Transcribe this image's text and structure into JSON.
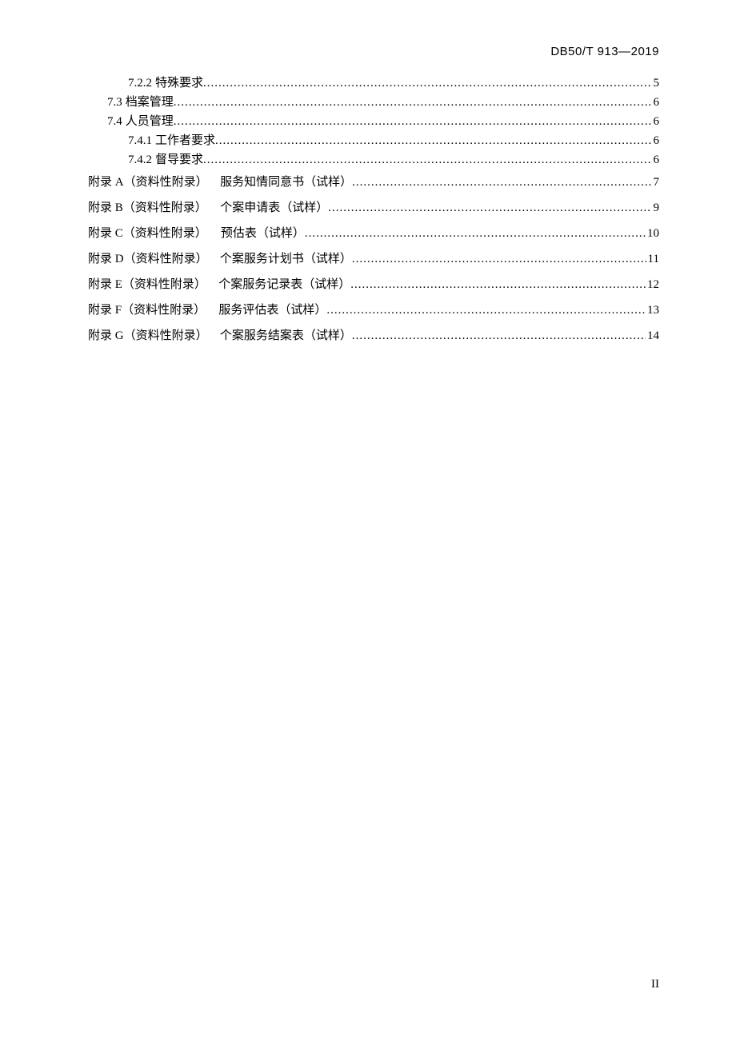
{
  "doc_code": "DB50/T 913—2019",
  "page_label": "II",
  "toc": [
    {
      "kind": "section",
      "level": 0,
      "num": "7.2.2",
      "title": "特殊要求",
      "page": "5",
      "lh": "small"
    },
    {
      "kind": "section",
      "level": 1,
      "num": "7.3",
      "title": "档案管理",
      "page": "6",
      "lh": "small"
    },
    {
      "kind": "section",
      "level": 1,
      "num": "7.4",
      "title": "人员管理",
      "page": "6",
      "lh": "small"
    },
    {
      "kind": "section",
      "level": 0,
      "num": "7.4.1",
      "title": "工作者要求",
      "page": "6",
      "lh": "small"
    },
    {
      "kind": "section",
      "level": 0,
      "num": "7.4.2",
      "title": "督导要求",
      "page": "6",
      "lh": "small"
    },
    {
      "kind": "appendix",
      "level": 2,
      "label": "附录 A（资料性附录）",
      "title": "服务知情同意书（试样）",
      "page": "7",
      "lh": "large"
    },
    {
      "kind": "appendix",
      "level": 2,
      "label": "附录 B（资料性附录）",
      "title": "个案申请表（试样）",
      "page": "9",
      "lh": "large"
    },
    {
      "kind": "appendix",
      "level": 2,
      "label": "附录 C（资料性附录）",
      "title": "预估表（试样）",
      "page": "10",
      "lh": "large"
    },
    {
      "kind": "appendix",
      "level": 2,
      "label": "附录 D（资料性附录）",
      "title": "个案服务计划书（试样）",
      "page": "11",
      "lh": "large"
    },
    {
      "kind": "appendix",
      "level": 2,
      "label": "附录 E（资料性附录）",
      "title": "个案服务记录表（试样）",
      "page": "12",
      "lh": "large"
    },
    {
      "kind": "appendix",
      "level": 2,
      "label": "附录 F（资料性附录）",
      "title": "服务评估表（试样）",
      "page": "13",
      "lh": "large"
    },
    {
      "kind": "appendix",
      "level": 2,
      "label": "附录 G（资料性附录）",
      "title": "个案服务结案表（试样）",
      "page": "14",
      "lh": "large"
    }
  ]
}
